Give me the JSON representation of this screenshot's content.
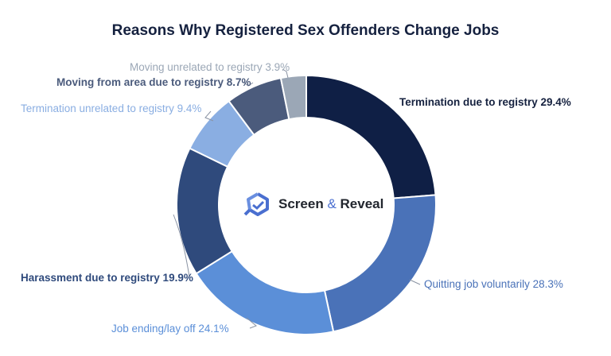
{
  "chart_data": {
    "type": "pie",
    "subtype": "donut",
    "title": "Reasons Why Registered Sex Offenders Change Jobs",
    "unit": "%",
    "slices": [
      {
        "label": "Termination due to registry",
        "value": 29.4,
        "color": "#0f1f45"
      },
      {
        "label": "Quitting job voluntarily",
        "value": 28.3,
        "color": "#4a72b8"
      },
      {
        "label": "Job ending/lay off",
        "value": 24.1,
        "color": "#5b8fd8"
      },
      {
        "label": "Harassment due to registry",
        "value": 19.9,
        "color": "#2f4a7c"
      },
      {
        "label": "Termination unrelated to registry",
        "value": 9.4,
        "color": "#8aaee2"
      },
      {
        "label": "Moving from area due to registry",
        "value": 8.7,
        "color": "#4b5b7c"
      },
      {
        "label": "Moving unrelated to registry",
        "value": 3.9,
        "color": "#9ba7b6"
      }
    ],
    "label_colors": [
      "#15213f",
      "#4a72b8",
      "#5b8fd8",
      "#2f4a7c",
      "#8aaee2",
      "#4b5b7c",
      "#9ba7b6"
    ],
    "legend": "none"
  },
  "logo": {
    "word1": "Screen",
    "amp": "&",
    "word2": "Reveal"
  }
}
